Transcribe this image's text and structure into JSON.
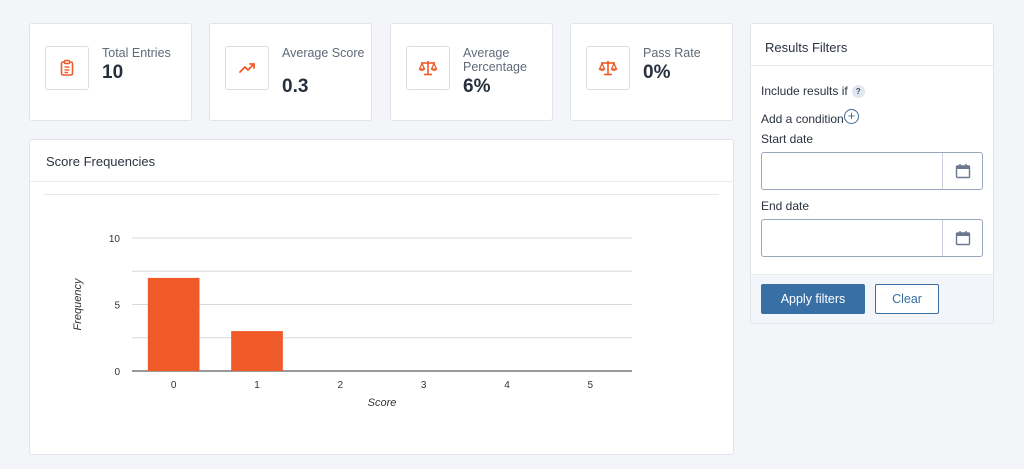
{
  "stats": [
    {
      "label": "Total Entries",
      "value": "10",
      "icon": "clipboard-icon"
    },
    {
      "label": "Average Score",
      "value": "0.3",
      "icon": "trend-up-icon"
    },
    {
      "label": "Average Percentage",
      "value": "6%",
      "icon": "scale-icon"
    },
    {
      "label": "Pass Rate",
      "value": "0%",
      "icon": "scale-icon"
    }
  ],
  "chart_card": {
    "title": "Score Frequencies"
  },
  "chart_data": {
    "type": "bar",
    "categories": [
      "0",
      "1",
      "2",
      "3",
      "4",
      "5"
    ],
    "values": [
      7,
      3,
      0,
      0,
      0,
      0
    ],
    "xlabel": "Score",
    "ylabel": "Frequency",
    "ylim": [
      0,
      10
    ],
    "yticks": [
      "0",
      "5",
      "10"
    ],
    "bar_color": "#f05a28",
    "grid": true
  },
  "filters": {
    "title": "Results Filters",
    "include_label": "Include results if",
    "help_symbol": "?",
    "add_condition_label": "Add a condition",
    "add_symbol": "+",
    "start_date_label": "Start date",
    "start_date_value": "",
    "end_date_label": "End date",
    "end_date_value": "",
    "apply_label": "Apply filters",
    "clear_label": "Clear"
  },
  "colors": {
    "accent": "#f05a28",
    "primary": "#386fa4"
  }
}
